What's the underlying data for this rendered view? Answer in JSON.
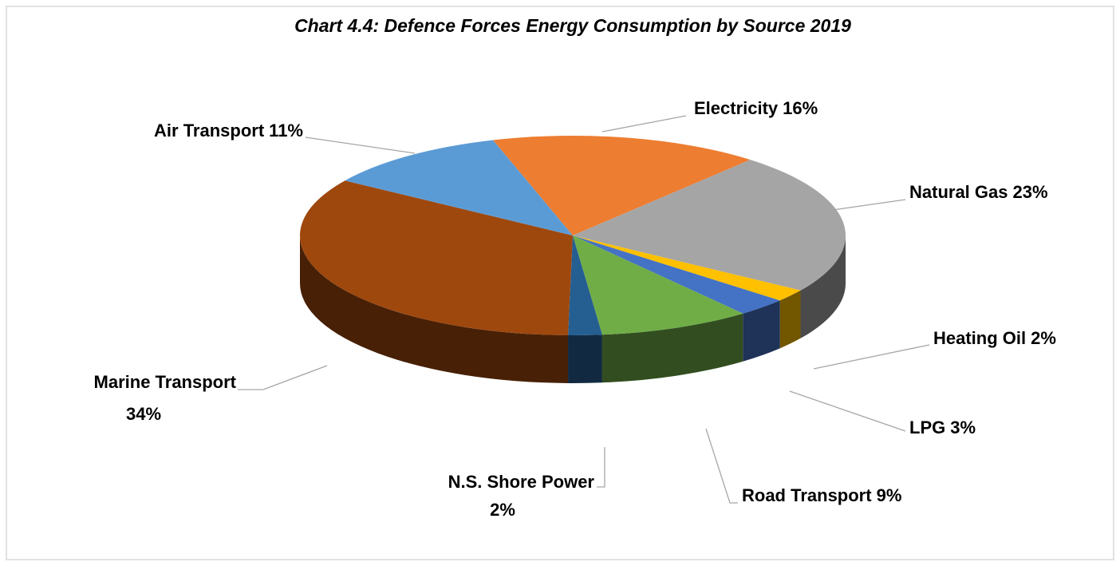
{
  "chart_data": {
    "type": "pie3d",
    "title": "Chart 4.4: Defence Forces Energy Consumption by Source 2019",
    "categories": [
      "Electricity",
      "Natural Gas",
      "Heating Oil",
      "LPG",
      "Road Transport",
      "N.S. Shore Power",
      "Marine Transport",
      "Air Transport"
    ],
    "values": [
      16,
      23,
      2,
      3,
      9,
      2,
      34,
      11
    ],
    "value_labels": [
      "16%",
      "23%",
      "2%",
      "3%",
      "9%",
      "2%",
      "34%",
      "11%"
    ],
    "colors": [
      "#ed7d31",
      "#a5a5a5",
      "#ffc000",
      "#4472c4",
      "#70ad47",
      "#255e91",
      "#9e480e",
      "#5b9bd5"
    ]
  }
}
